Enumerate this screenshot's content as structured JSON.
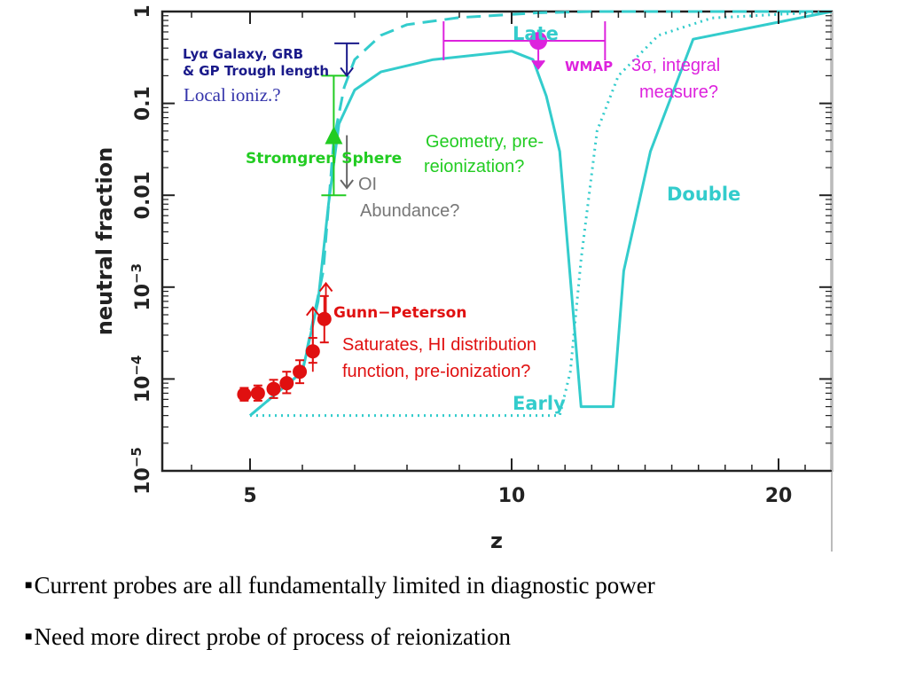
{
  "chart_data": {
    "type": "line",
    "title": "",
    "xlabel": "z",
    "ylabel": "neutral  fraction",
    "xscale": "linear",
    "yscale": "log",
    "xlim": [
      3.5,
      22
    ],
    "ylim": [
      1e-05,
      1
    ],
    "xticks": [
      5,
      10,
      20
    ],
    "xtick_labels": [
      "5",
      "10",
      "20"
    ],
    "yticks": [
      1e-05,
      0.0001,
      0.001,
      0.01,
      0.1,
      1
    ],
    "ytick_labels": [
      {
        "base": "10",
        "exp": "−5",
        "plain": ""
      },
      {
        "base": "10",
        "exp": "−4",
        "plain": ""
      },
      {
        "base": "10",
        "exp": "−3",
        "plain": ""
      },
      {
        "base": "",
        "exp": "",
        "plain": "0.01"
      },
      {
        "base": "",
        "exp": "",
        "plain": "0.1"
      },
      {
        "base": "",
        "exp": "",
        "plain": "1"
      }
    ],
    "grid": false,
    "series": [
      {
        "name": "Late",
        "style": "dashed",
        "color": "#33cccc",
        "x": [
          5.0,
          6.0,
          6.4,
          6.6,
          6.8,
          7.0,
          7.5,
          8.0,
          9.0,
          10.0,
          11.0,
          13.0,
          16.0,
          22.0
        ],
        "y": [
          4e-05,
          0.00012,
          0.0015,
          0.04,
          0.15,
          0.3,
          0.55,
          0.72,
          0.86,
          0.93,
          0.97,
          1.0,
          1.0,
          1.0
        ]
      },
      {
        "name": "Double",
        "style": "solid",
        "color": "#33cccc",
        "x": [
          5.0,
          6.0,
          6.3,
          6.5,
          6.7,
          7.0,
          7.5,
          8.5,
          10.0,
          10.8,
          11.3,
          11.8,
          12.6,
          13.8,
          14.2,
          15.2,
          16.8,
          22.0
        ],
        "y": [
          4e-05,
          0.00012,
          0.0007,
          0.008,
          0.06,
          0.14,
          0.22,
          0.3,
          0.37,
          0.3,
          0.12,
          0.03,
          5e-05,
          5e-05,
          0.0015,
          0.03,
          0.5,
          1.0
        ]
      },
      {
        "name": "Early",
        "style": "dotted",
        "color": "#33cccc",
        "x": [
          5.0,
          6.0,
          9.0,
          11.8,
          12.2,
          12.6,
          13.2,
          14.0,
          15.5,
          17.5,
          22.0
        ],
        "y": [
          4e-05,
          4e-05,
          4e-05,
          4e-05,
          0.00012,
          0.002,
          0.05,
          0.2,
          0.55,
          0.85,
          1.0
        ]
      }
    ],
    "probes": [
      {
        "name": "Gunn-Peterson",
        "color": "#e01010",
        "points": [
          {
            "x": 4.9,
            "y": 6.8e-05,
            "ylo": 5.8e-05,
            "yhi": 8e-05
          },
          {
            "x": 5.15,
            "y": 7e-05,
            "ylo": 5.8e-05,
            "yhi": 8.5e-05
          },
          {
            "x": 5.45,
            "y": 7.8e-05,
            "ylo": 6.2e-05,
            "yhi": 9.8e-05
          },
          {
            "x": 5.7,
            "y": 9e-05,
            "ylo": 7e-05,
            "yhi": 0.00012
          },
          {
            "x": 5.95,
            "y": 0.00012,
            "ylo": 9e-05,
            "yhi": 0.00016
          },
          {
            "x": 6.2,
            "y": 0.0002,
            "ylo": 0.00015,
            "yhi": 0.00028
          },
          {
            "x": 6.42,
            "y": 0.00045,
            "ylo": 0.00025,
            "yhi": 0.0008
          }
        ],
        "lower_limits": [
          {
            "x": 6.2,
            "y": 0.00012,
            "y_to": 0.0006
          },
          {
            "x": 6.45,
            "y": 0.00045,
            "y_to": 0.0011
          }
        ]
      },
      {
        "name": "Strömgren Sphere",
        "color": "#22cc22",
        "point": {
          "x": 6.6,
          "y": 0.045
        },
        "yrange": [
          0.01,
          0.2
        ]
      },
      {
        "name": "Lyα Galaxy, GRB & GP Trough length",
        "color": "#1a1a8a",
        "point": {
          "x": 6.85,
          "y": 0.45
        },
        "to": 0.2
      },
      {
        "name": "OI Abundance",
        "color": "#666666",
        "point": {
          "x": 6.85,
          "y": 0.012
        },
        "from": 0.045
      },
      {
        "name": "WMAP",
        "color": "#dd22dd",
        "point": {
          "x": 11.0,
          "y": 0.48
        },
        "xrange": [
          8.7,
          13.5
        ],
        "to": 0.24
      }
    ]
  },
  "labels": {
    "curve_late": "Late",
    "curve_double": "Double",
    "curve_early": "Early",
    "gp": "Gunn−Peterson",
    "stromgren": "Stromgren  Sphere",
    "lya_line1": "Lyα  Galaxy, GRB",
    "lya_line2": "& GP Trough length",
    "wmap": "WMAP"
  },
  "annotations": {
    "local_ioniz": "Local ioniz.?",
    "sigma_line1": "3σ, integral",
    "sigma_line2": "measure?",
    "geometry_line1": "Geometry, pre-",
    "geometry_line2": "reionization?",
    "oi_line1": "OI",
    "oi_line2": "Abundance?",
    "saturates_line1": "Saturates, HI distribution",
    "saturates_line2": "function, pre-ionization?"
  },
  "bullets": [
    {
      "mark": "■",
      "text": "Current probes are all fundamentally limited in diagnostic power"
    },
    {
      "mark": "■",
      "text": "Need more direct probe of process of reionization"
    }
  ],
  "colors": {
    "curve": "#33cccc",
    "gp": "#e01010",
    "stromgren": "#22cc22",
    "lya": "#1a1a8a",
    "oi": "#666666",
    "wmap": "#dd22dd",
    "local_ioniz": "#3333aa"
  }
}
